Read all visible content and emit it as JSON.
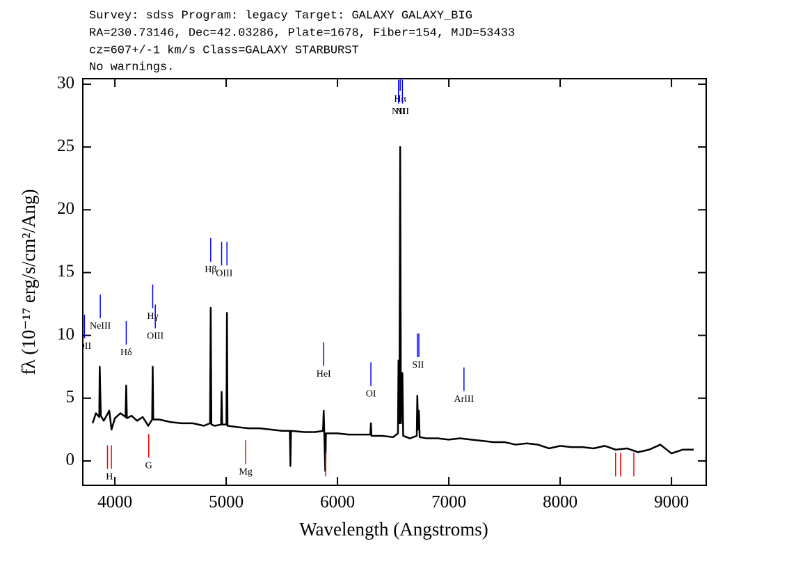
{
  "chart_data": {
    "type": "line",
    "title_lines": [
      "Survey: sdss Program: legacy Target: GALAXY GALAXY_BIG",
      "RA=230.73146, Dec=42.03286, Plate=1678, Fiber=154, MJD=53433",
      "cz=607+/-1 km/s Class=GALAXY STARBURST",
      "No warnings."
    ],
    "xlabel": "Wavelength (Angstroms)",
    "ylabel": "fλ (10⁻¹⁷ erg/s/cm²/Ang)",
    "xlim": [
      3712,
      9312
    ],
    "ylim": [
      -1.94,
      30.44
    ],
    "xticks": [
      4000,
      5000,
      6000,
      7000,
      8000,
      9000
    ],
    "yticks": [
      0,
      5,
      10,
      15,
      20,
      25,
      30
    ],
    "x": [
      3800,
      3830,
      3860,
      3864,
      3874,
      3900,
      3950,
      3970,
      4000,
      4050,
      4096,
      4102,
      4108,
      4150,
      4200,
      4250,
      4300,
      4335,
      4340,
      4345,
      4400,
      4500,
      4600,
      4700,
      4800,
      4855,
      4861,
      4867,
      4900,
      4954,
      4959,
      4964,
      5002,
      5007,
      5012,
      5100,
      5200,
      5300,
      5400,
      5500,
      5572,
      5577,
      5582,
      5700,
      5800,
      5870,
      5876,
      5890,
      5896,
      6000,
      6100,
      6200,
      6295,
      6300,
      6305,
      6400,
      6500,
      6543,
      6548,
      6556,
      6563,
      6570,
      6583,
      6590,
      6650,
      6712,
      6717,
      6724,
      6731,
      6738,
      6800,
      6900,
      7000,
      7100,
      7200,
      7300,
      7400,
      7500,
      7600,
      7700,
      7800,
      7900,
      8000,
      8100,
      8200,
      8300,
      8400,
      8500,
      8600,
      8700,
      8800,
      8900,
      9000,
      9100,
      9200
    ],
    "series": [
      {
        "color": "#000000",
        "values": [
          3.0,
          3.8,
          3.5,
          7.5,
          3.6,
          3.2,
          4.0,
          2.5,
          3.4,
          3.8,
          3.5,
          6.0,
          3.4,
          3.6,
          3.2,
          3.5,
          2.8,
          3.3,
          7.5,
          3.3,
          3.3,
          3.1,
          3.0,
          3.0,
          2.8,
          3.0,
          12.2,
          2.9,
          2.8,
          2.9,
          5.5,
          2.9,
          2.9,
          11.8,
          2.8,
          2.7,
          2.6,
          2.6,
          2.5,
          2.4,
          2.4,
          -0.4,
          2.4,
          2.3,
          2.3,
          2.4,
          4.0,
          -0.8,
          2.2,
          2.2,
          2.1,
          2.1,
          2.1,
          3.0,
          2.0,
          2.0,
          1.9,
          2.2,
          8.0,
          3.0,
          25.0,
          3.0,
          7.0,
          2.0,
          1.8,
          2.0,
          5.2,
          2.5,
          4.0,
          1.9,
          1.8,
          1.8,
          1.7,
          1.8,
          1.7,
          1.6,
          1.5,
          1.5,
          1.3,
          1.4,
          1.3,
          1.0,
          1.2,
          1.1,
          1.1,
          1.0,
          1.2,
          0.9,
          1.0,
          0.7,
          0.9,
          1.3,
          0.6,
          0.9,
          0.9
        ]
      }
    ],
    "emission_lines": [
      {
        "label": "OII",
        "x": [
          3727
        ],
        "y": 9.1
      },
      {
        "label": "NeIII",
        "x": [
          3869
        ],
        "y": 10.7
      },
      {
        "label": "Hδ",
        "x": [
          4102
        ],
        "y": 8.6
      },
      {
        "label": "Hγ",
        "x": [
          4340
        ],
        "y": 11.5
      },
      {
        "label": "OIII",
        "x": [
          4363
        ],
        "y": 9.9
      },
      {
        "label": "Hβ",
        "x": [
          4861
        ],
        "y": 15.2
      },
      {
        "label": "OIII",
        "x": [
          4959,
          5007
        ],
        "y": 14.9
      },
      {
        "label": "HeI",
        "x": [
          5876
        ],
        "y": 6.9
      },
      {
        "label": "OI",
        "x": [
          6300
        ],
        "y": 5.3
      },
      {
        "label": "NII",
        "x": [
          6548
        ],
        "y": 27.8
      },
      {
        "label": "Hα",
        "x": [
          6563
        ],
        "y": 28.8
      },
      {
        "label": "NII",
        "x": [
          6583
        ],
        "y": 27.8
      },
      {
        "label": "SII",
        "x": [
          6717,
          6731
        ],
        "y": 7.6
      },
      {
        "label": "ArIII",
        "x": [
          7136
        ],
        "y": 4.9
      }
    ],
    "absorption_lines": [
      {
        "label": "H",
        "x": [
          3934,
          3969
        ],
        "y": -1.3
      },
      {
        "label": "G",
        "x": [
          4304
        ],
        "y": -0.4
      },
      {
        "label": "Mg",
        "x": [
          5175
        ],
        "y": -0.9
      },
      {
        "label": null,
        "x": [
          5894
        ],
        "y": -1.9
      },
      {
        "label": null,
        "x": [
          8498,
          8542,
          8662
        ],
        "y": -1.9
      }
    ],
    "emission_color": "#0000ff",
    "absorption_color": "#ff0000"
  }
}
